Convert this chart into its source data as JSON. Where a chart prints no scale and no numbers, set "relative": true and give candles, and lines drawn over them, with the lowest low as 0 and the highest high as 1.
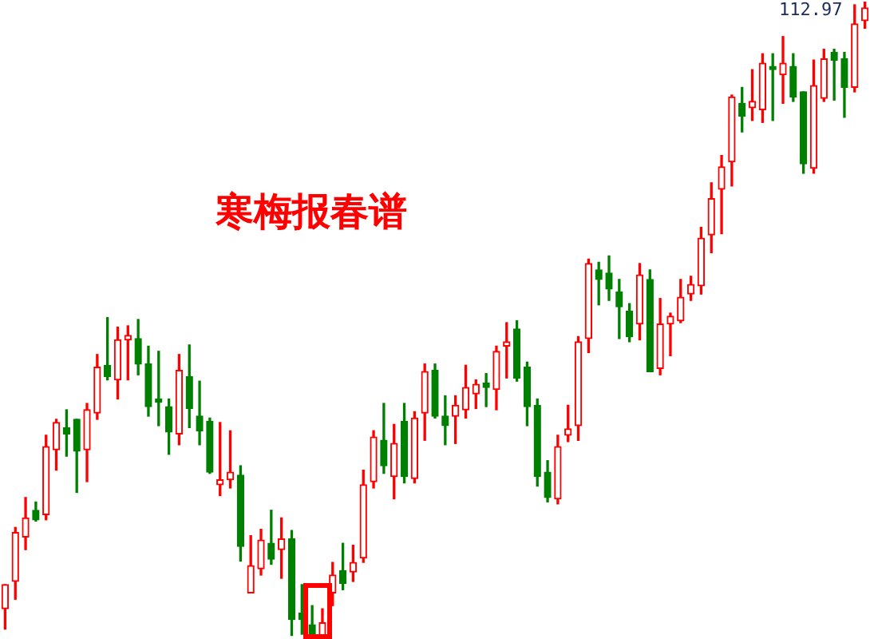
{
  "chart_data": {
    "type": "candlestick",
    "title": "寒梅报春谱",
    "relative": true,
    "legend": false,
    "annotations": [
      "112.97"
    ],
    "categories": [
      null,
      null,
      null,
      null,
      null,
      null,
      null,
      null,
      null,
      null,
      null,
      null,
      null,
      null,
      null,
      null,
      null,
      null,
      null,
      null,
      null,
      null,
      null,
      null,
      null,
      null,
      null,
      null,
      null,
      null,
      null,
      null,
      null,
      null,
      null,
      null,
      null,
      null,
      null,
      null,
      null,
      null,
      null,
      null,
      null,
      null,
      null,
      null,
      null,
      null,
      null,
      null,
      null,
      null,
      null,
      null,
      null,
      null,
      null,
      null,
      null,
      null,
      null,
      null,
      null,
      null,
      null,
      null,
      null,
      null,
      null,
      null,
      null,
      null,
      null,
      null,
      null,
      null,
      null,
      null,
      null,
      null,
      null,
      null,
      null
    ],
    "ohlc": [
      [
        0.045,
        0.083,
        0.013,
        0.083
      ],
      [
        0.088,
        0.173,
        0.06,
        0.165
      ],
      [
        0.158,
        0.22,
        0.138,
        0.188
      ],
      [
        0.2,
        0.213,
        0.183,
        0.185
      ],
      [
        0.193,
        0.318,
        0.185,
        0.3
      ],
      [
        0.295,
        0.343,
        0.263,
        0.338
      ],
      [
        0.33,
        0.358,
        0.285,
        0.32
      ],
      [
        0.343,
        0.343,
        0.228,
        0.293
      ],
      [
        0.295,
        0.368,
        0.245,
        0.358
      ],
      [
        0.353,
        0.445,
        0.343,
        0.425
      ],
      [
        0.428,
        0.503,
        0.405,
        0.41
      ],
      [
        0.405,
        0.488,
        0.375,
        0.468
      ],
      [
        0.468,
        0.49,
        0.405,
        0.475
      ],
      [
        0.47,
        0.5,
        0.413,
        0.43
      ],
      [
        0.43,
        0.458,
        0.348,
        0.363
      ],
      [
        0.375,
        0.45,
        0.333,
        0.37
      ],
      [
        0.363,
        0.375,
        0.288,
        0.323
      ],
      [
        0.32,
        0.445,
        0.303,
        0.42
      ],
      [
        0.41,
        0.46,
        0.33,
        0.36
      ],
      [
        0.348,
        0.403,
        0.303,
        0.325
      ],
      [
        0.34,
        0.345,
        0.258,
        0.26
      ],
      [
        0.24,
        0.338,
        0.223,
        0.248
      ],
      [
        0.248,
        0.325,
        0.235,
        0.26
      ],
      [
        0.255,
        0.27,
        0.12,
        0.143
      ],
      [
        0.07,
        0.16,
        0.07,
        0.113
      ],
      [
        0.108,
        0.17,
        0.098,
        0.153
      ],
      [
        0.148,
        0.2,
        0.115,
        0.123
      ],
      [
        0.138,
        0.188,
        0.093,
        0.155
      ],
      [
        0.155,
        0.168,
        0.003,
        0.028
      ],
      [
        0.038,
        0.083,
        0.005,
        0.028
      ],
      [
        0.02,
        0.05,
        0,
        0
      ],
      [
        0,
        0.045,
        0,
        0.023
      ],
      [
        0.07,
        0.118,
        0.05,
        0.098
      ],
      [
        0.105,
        0.148,
        0.075,
        0.085
      ],
      [
        0.103,
        0.145,
        0.088,
        0.118
      ],
      [
        0.125,
        0.263,
        0.118,
        0.24
      ],
      [
        0.245,
        0.325,
        0.235,
        0.315
      ],
      [
        0.31,
        0.368,
        0.258,
        0.27
      ],
      [
        0.253,
        0.335,
        0.218,
        0.305
      ],
      [
        0.34,
        0.368,
        0.243,
        0.253
      ],
      [
        0.25,
        0.355,
        0.243,
        0.345
      ],
      [
        0.353,
        0.43,
        0.31,
        0.418
      ],
      [
        0.42,
        0.43,
        0.345,
        0.348
      ],
      [
        0.348,
        0.38,
        0.303,
        0.333
      ],
      [
        0.348,
        0.38,
        0.305,
        0.365
      ],
      [
        0.358,
        0.428,
        0.345,
        0.393
      ],
      [
        0.383,
        0.405,
        0.36,
        0.398
      ],
      [
        0.4,
        0.415,
        0.363,
        0.393
      ],
      [
        0.39,
        0.458,
        0.358,
        0.45
      ],
      [
        0.458,
        0.495,
        0.408,
        0.465
      ],
      [
        0.485,
        0.498,
        0.403,
        0.408
      ],
      [
        0.425,
        0.433,
        0.333,
        0.363
      ],
      [
        0.365,
        0.375,
        0.238,
        0.253
      ],
      [
        0.26,
        0.278,
        0.213,
        0.22
      ],
      [
        0.218,
        0.318,
        0.21,
        0.3
      ],
      [
        0.318,
        0.365,
        0.308,
        0.328
      ],
      [
        0.333,
        0.473,
        0.31,
        0.465
      ],
      [
        0.47,
        0.595,
        0.448,
        0.588
      ],
      [
        0.578,
        0.59,
        0.523,
        0.563
      ],
      [
        0.573,
        0.6,
        0.53,
        0.548
      ],
      [
        0.543,
        0.563,
        0.47,
        0.52
      ],
      [
        0.513,
        0.525,
        0.465,
        0.473
      ],
      [
        0.493,
        0.588,
        0.468,
        0.57
      ],
      [
        0.563,
        0.578,
        0.418,
        0.418
      ],
      [
        0.423,
        0.533,
        0.413,
        0.493
      ],
      [
        0.493,
        0.51,
        0.443,
        0.505
      ],
      [
        0.498,
        0.563,
        0.495,
        0.535
      ],
      [
        0.54,
        0.568,
        0.53,
        0.555
      ],
      [
        0.553,
        0.645,
        0.54,
        0.628
      ],
      [
        0.633,
        0.715,
        0.605,
        0.69
      ],
      [
        0.705,
        0.758,
        0.635,
        0.74
      ],
      [
        0.748,
        0.853,
        0.71,
        0.85
      ],
      [
        0.84,
        0.865,
        0.795,
        0.82
      ],
      [
        0.833,
        0.893,
        0.813,
        0.843
      ],
      [
        0.83,
        0.918,
        0.81,
        0.903
      ],
      [
        0.898,
        0.918,
        0.813,
        0.893
      ],
      [
        0.885,
        0.945,
        0.84,
        0.903
      ],
      [
        0.898,
        0.918,
        0.843,
        0.85
      ],
      [
        0.858,
        0.858,
        0.73,
        0.745
      ],
      [
        0.738,
        0.908,
        0.73,
        0.868
      ],
      [
        0.848,
        0.925,
        0.843,
        0.91
      ],
      [
        0.92,
        0.925,
        0.845,
        0.908
      ],
      [
        0.91,
        0.92,
        0.818,
        0.865
      ],
      [
        0.865,
        0.995,
        0.858,
        0.965
      ],
      [
        0.97,
        1,
        0.958,
        0.99
      ]
    ],
    "colors": [
      "#ff0000",
      "#ff0000",
      "#ff0000",
      "#008000",
      "#ff0000",
      "#ff0000",
      "#008000",
      "#008000",
      "#ff0000",
      "#ff0000",
      "#008000",
      "#ff0000",
      "#ff0000",
      "#008000",
      "#008000",
      "#008000",
      "#008000",
      "#ff0000",
      "#008000",
      "#008000",
      "#008000",
      "#ff0000",
      "#ff0000",
      "#008000",
      "#ff0000",
      "#ff0000",
      "#008000",
      "#ff0000",
      "#008000",
      "#008000",
      "#008000",
      "#ff0000",
      "#ff0000",
      "#008000",
      "#ff0000",
      "#ff0000",
      "#ff0000",
      "#008000",
      "#ff0000",
      "#008000",
      "#ff0000",
      "#ff0000",
      "#008000",
      "#008000",
      "#ff0000",
      "#ff0000",
      "#ff0000",
      "#008000",
      "#ff0000",
      "#ff0000",
      "#008000",
      "#008000",
      "#008000",
      "#008000",
      "#ff0000",
      "#ff0000",
      "#ff0000",
      "#ff0000",
      "#008000",
      "#008000",
      "#008000",
      "#008000",
      "#ff0000",
      "#008000",
      "#ff0000",
      "#ff0000",
      "#ff0000",
      "#ff0000",
      "#ff0000",
      "#ff0000",
      "#ff0000",
      "#ff0000",
      "#008000",
      "#ff0000",
      "#ff0000",
      "#008000",
      "#ff0000",
      "#008000",
      "#008000",
      "#ff0000",
      "#ff0000",
      "#008000",
      "#008000",
      "#ff0000",
      "#ff0000"
    ]
  }
}
